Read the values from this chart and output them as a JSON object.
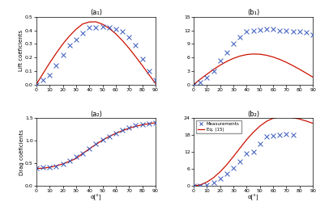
{
  "title_a1": "(a₁)",
  "title_a2": "(a₂)",
  "title_b1": "(b₁)",
  "title_b2": "(b₂)",
  "xlabel": "α[°]",
  "ylabel_lift": "Lift coëficients",
  "ylabel_drag": "Drag coëficients",
  "legend_marker": "Measurements",
  "legend_line": "Eq. (15)",
  "marker_color": "#3355bb",
  "line_color": "#cc1100",
  "xticks": [
    0,
    10,
    20,
    30,
    40,
    50,
    60,
    70,
    80,
    90
  ],
  "a1_curve_x": [
    0,
    5,
    10,
    15,
    20,
    25,
    30,
    35,
    40,
    45,
    50,
    55,
    60,
    65,
    70,
    75,
    80,
    85,
    90
  ],
  "a1_curve_y": [
    0.0,
    0.08,
    0.158,
    0.231,
    0.299,
    0.358,
    0.408,
    0.447,
    0.462,
    0.463,
    0.445,
    0.415,
    0.374,
    0.324,
    0.267,
    0.205,
    0.14,
    0.073,
    0.007
  ],
  "a1_pts_x": [
    0,
    5,
    10,
    15,
    20,
    25,
    30,
    35,
    40,
    45,
    50,
    55,
    60,
    65,
    70,
    75,
    80,
    85,
    90
  ],
  "a1_pts_y": [
    0.0,
    0.03,
    0.07,
    0.14,
    0.22,
    0.29,
    0.33,
    0.38,
    0.42,
    0.42,
    0.43,
    0.42,
    0.41,
    0.39,
    0.35,
    0.29,
    0.19,
    0.1,
    0.03
  ],
  "a1_ylim": [
    0,
    0.5
  ],
  "a1_yticks": [
    0,
    0.1,
    0.2,
    0.3,
    0.4,
    0.5
  ],
  "a2_curve_x": [
    0,
    5,
    10,
    15,
    20,
    25,
    30,
    35,
    40,
    45,
    50,
    55,
    60,
    65,
    70,
    75,
    80,
    85,
    90
  ],
  "a2_curve_y": [
    0.385,
    0.392,
    0.412,
    0.444,
    0.488,
    0.543,
    0.607,
    0.719,
    0.82,
    0.92,
    1.015,
    1.095,
    1.165,
    1.225,
    1.278,
    1.32,
    1.355,
    1.378,
    1.4
  ],
  "a2_pts_x": [
    0,
    5,
    10,
    15,
    20,
    25,
    30,
    35,
    40,
    45,
    50,
    55,
    60,
    65,
    70,
    75,
    80,
    85,
    90
  ],
  "a2_pts_y": [
    0.4,
    0.42,
    0.42,
    0.44,
    0.48,
    0.55,
    0.64,
    0.72,
    0.82,
    0.93,
    1.02,
    1.1,
    1.17,
    1.24,
    1.29,
    1.34,
    1.37,
    1.38,
    1.4
  ],
  "a2_ylim": [
    0,
    1.5
  ],
  "a2_yticks": [
    0,
    0.5,
    1.0,
    1.5
  ],
  "b1_curve_x": [
    0,
    5,
    10,
    15,
    20,
    25,
    30,
    35,
    40,
    45,
    50,
    55,
    60,
    65,
    70,
    75,
    80,
    85,
    90
  ],
  "b1_curve_y": [
    0.0,
    1.15,
    2.27,
    3.32,
    4.27,
    5.1,
    5.78,
    6.29,
    6.62,
    6.75,
    6.7,
    6.47,
    6.08,
    5.55,
    4.9,
    4.16,
    3.35,
    2.5,
    1.62
  ],
  "b1_pts_x": [
    0,
    5,
    10,
    15,
    20,
    25,
    30,
    35,
    40,
    45,
    50,
    55,
    60,
    65,
    70,
    75,
    80,
    85,
    90
  ],
  "b1_pts_y": [
    0.0,
    0.5,
    1.5,
    3.0,
    5.2,
    7.0,
    9.0,
    10.5,
    11.8,
    12.0,
    12.1,
    12.3,
    12.2,
    12.0,
    12.0,
    11.8,
    11.8,
    11.5,
    11.0
  ],
  "b1_ylim": [
    0,
    15
  ],
  "b1_yticks": [
    0,
    3,
    6,
    9,
    12,
    15
  ],
  "b2_curve_x": [
    0,
    5,
    10,
    15,
    20,
    25,
    30,
    35,
    40,
    45,
    50,
    55,
    60,
    65,
    70,
    75,
    80,
    85,
    90
  ],
  "b2_curve_y": [
    0.0,
    0.35,
    1.35,
    2.9,
    5.0,
    7.5,
    10.4,
    13.4,
    16.4,
    19.0,
    21.2,
    22.9,
    24.0,
    24.5,
    24.5,
    24.2,
    23.7,
    23.0,
    22.2
  ],
  "b2_pts_x": [
    0,
    5,
    10,
    15,
    20,
    25,
    30,
    35,
    40,
    45,
    50,
    55,
    60,
    65,
    70,
    75
  ],
  "b2_pts_y": [
    0.0,
    0.1,
    0.4,
    1.2,
    2.5,
    4.2,
    6.3,
    8.5,
    11.5,
    12.0,
    15.0,
    17.5,
    17.8,
    18.0,
    18.5,
    18.0
  ],
  "b2_ylim": [
    0,
    24
  ],
  "b2_yticks": [
    0,
    6,
    12,
    18,
    24
  ]
}
